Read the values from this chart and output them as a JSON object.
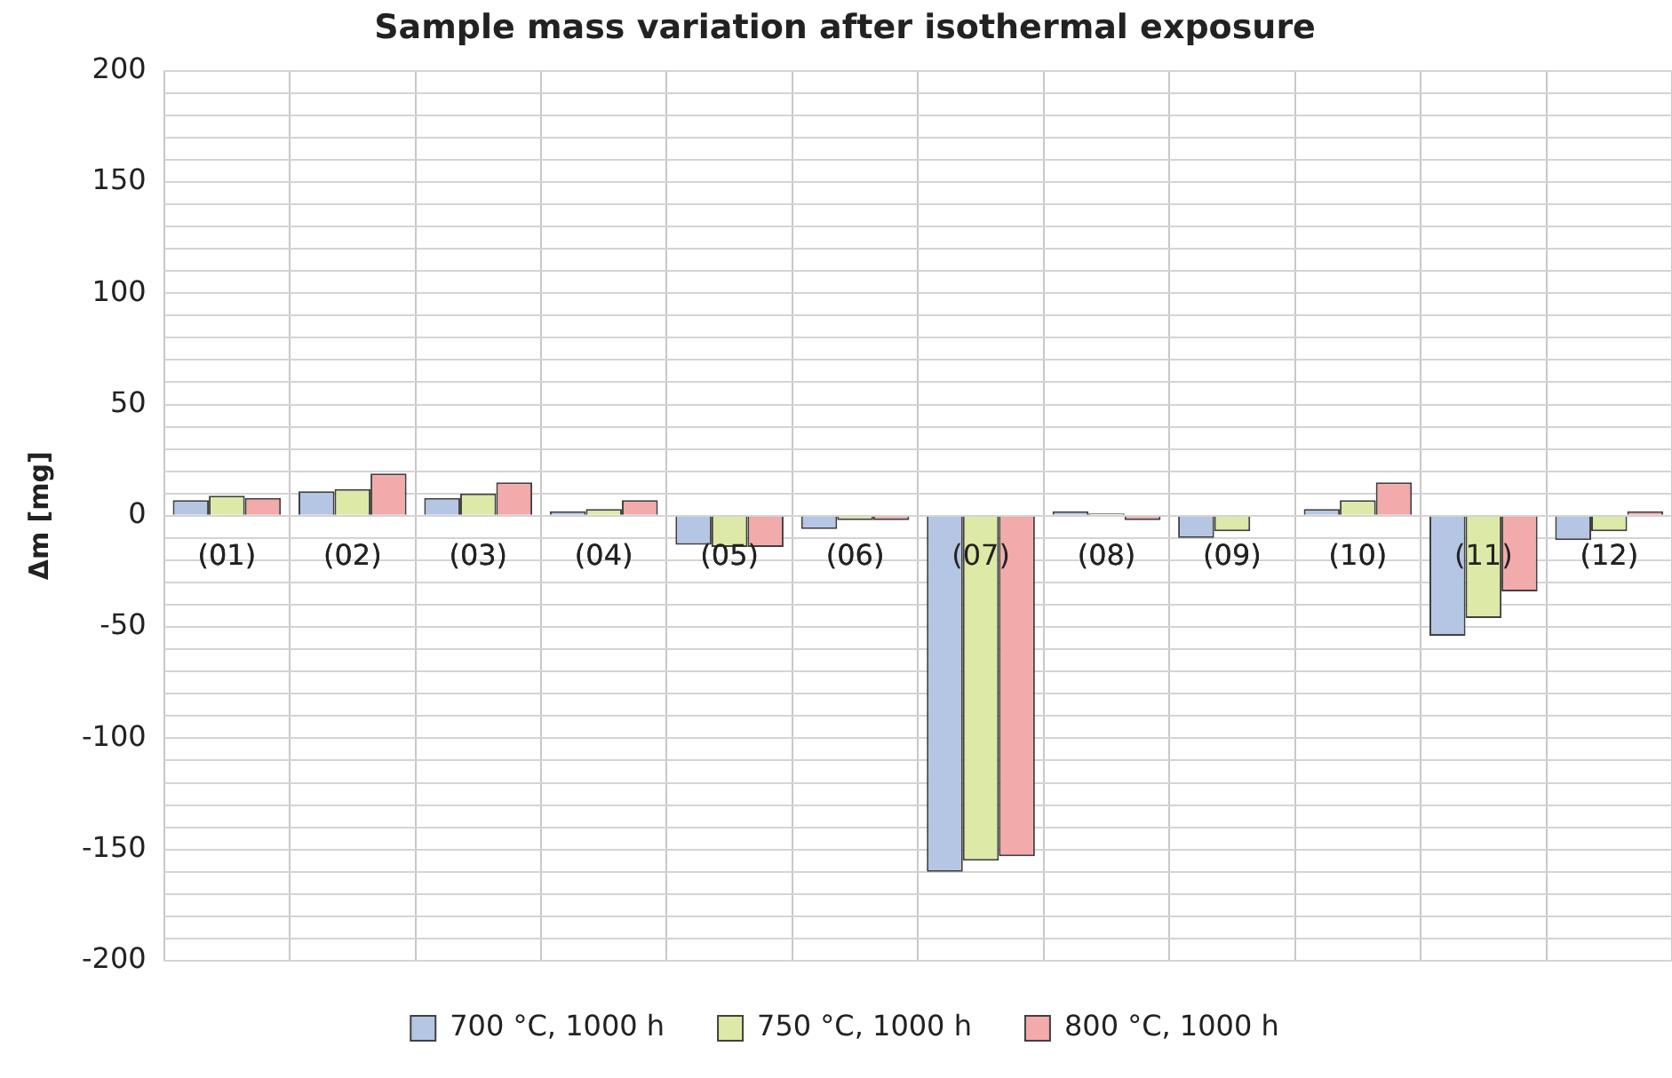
{
  "chart_data": {
    "type": "bar",
    "title": "Sample mass variation after isothermal exposure",
    "ylabel": "Δm [mg]",
    "categories": [
      "(01)",
      "(02)",
      "(03)",
      "(04)",
      "(05)",
      "(06)",
      "(07)",
      "(08)",
      "(09)",
      "(10)",
      "(11)",
      "(12)"
    ],
    "series": [
      {
        "name": "700 °C, 1000 h",
        "color": "#b4c6e4",
        "values": [
          7,
          11,
          8,
          2,
          -13,
          -6,
          -160,
          2,
          -10,
          3,
          -54,
          -11
        ]
      },
      {
        "name": "750 °C, 1000 h",
        "color": "#dde9a6",
        "values": [
          9,
          12,
          10,
          3,
          -14,
          -2,
          -155,
          1,
          -7,
          7,
          -46,
          -7
        ]
      },
      {
        "name": "800 °C, 1000 h",
        "color": "#f2aaaa",
        "values": [
          8,
          19,
          15,
          7,
          -14,
          -2,
          -153,
          -2,
          0,
          15,
          -34,
          2
        ]
      }
    ],
    "ylim": [
      -200,
      200
    ],
    "yticks": [
      -200,
      {
        "value": -190,
        "label": null
      },
      {
        "value": -180,
        "label": null
      },
      {
        "value": -170,
        "label": null
      },
      {
        "value": -160,
        "label": null
      },
      -150,
      {
        "value": -140,
        "label": null
      },
      {
        "value": -130,
        "label": null
      },
      {
        "value": -120,
        "label": null
      },
      {
        "value": -110,
        "label": null
      },
      -100,
      {
        "value": -90,
        "label": null
      },
      {
        "value": -80,
        "label": null
      },
      {
        "value": -70,
        "label": null
      },
      {
        "value": -60,
        "label": null
      },
      -50,
      {
        "value": -40,
        "label": null
      },
      {
        "value": -30,
        "label": null
      },
      {
        "value": -20,
        "label": null
      },
      {
        "value": -10,
        "label": null
      },
      0,
      {
        "value": 10,
        "label": null
      },
      {
        "value": 20,
        "label": null
      },
      {
        "value": 30,
        "label": null
      },
      {
        "value": 40,
        "label": null
      },
      50,
      {
        "value": 60,
        "label": null
      },
      {
        "value": 70,
        "label": null
      },
      {
        "value": 80,
        "label": null
      },
      {
        "value": 90,
        "label": null
      },
      100,
      {
        "value": 110,
        "label": null
      },
      {
        "value": 120,
        "label": null
      },
      {
        "value": 130,
        "label": null
      },
      {
        "value": 140,
        "label": null
      },
      150,
      {
        "value": 160,
        "label": null
      },
      {
        "value": 170,
        "label": null
      },
      {
        "value": 180,
        "label": null
      },
      {
        "value": 190,
        "label": null
      },
      200
    ],
    "grid": true,
    "legend": "bottom"
  }
}
